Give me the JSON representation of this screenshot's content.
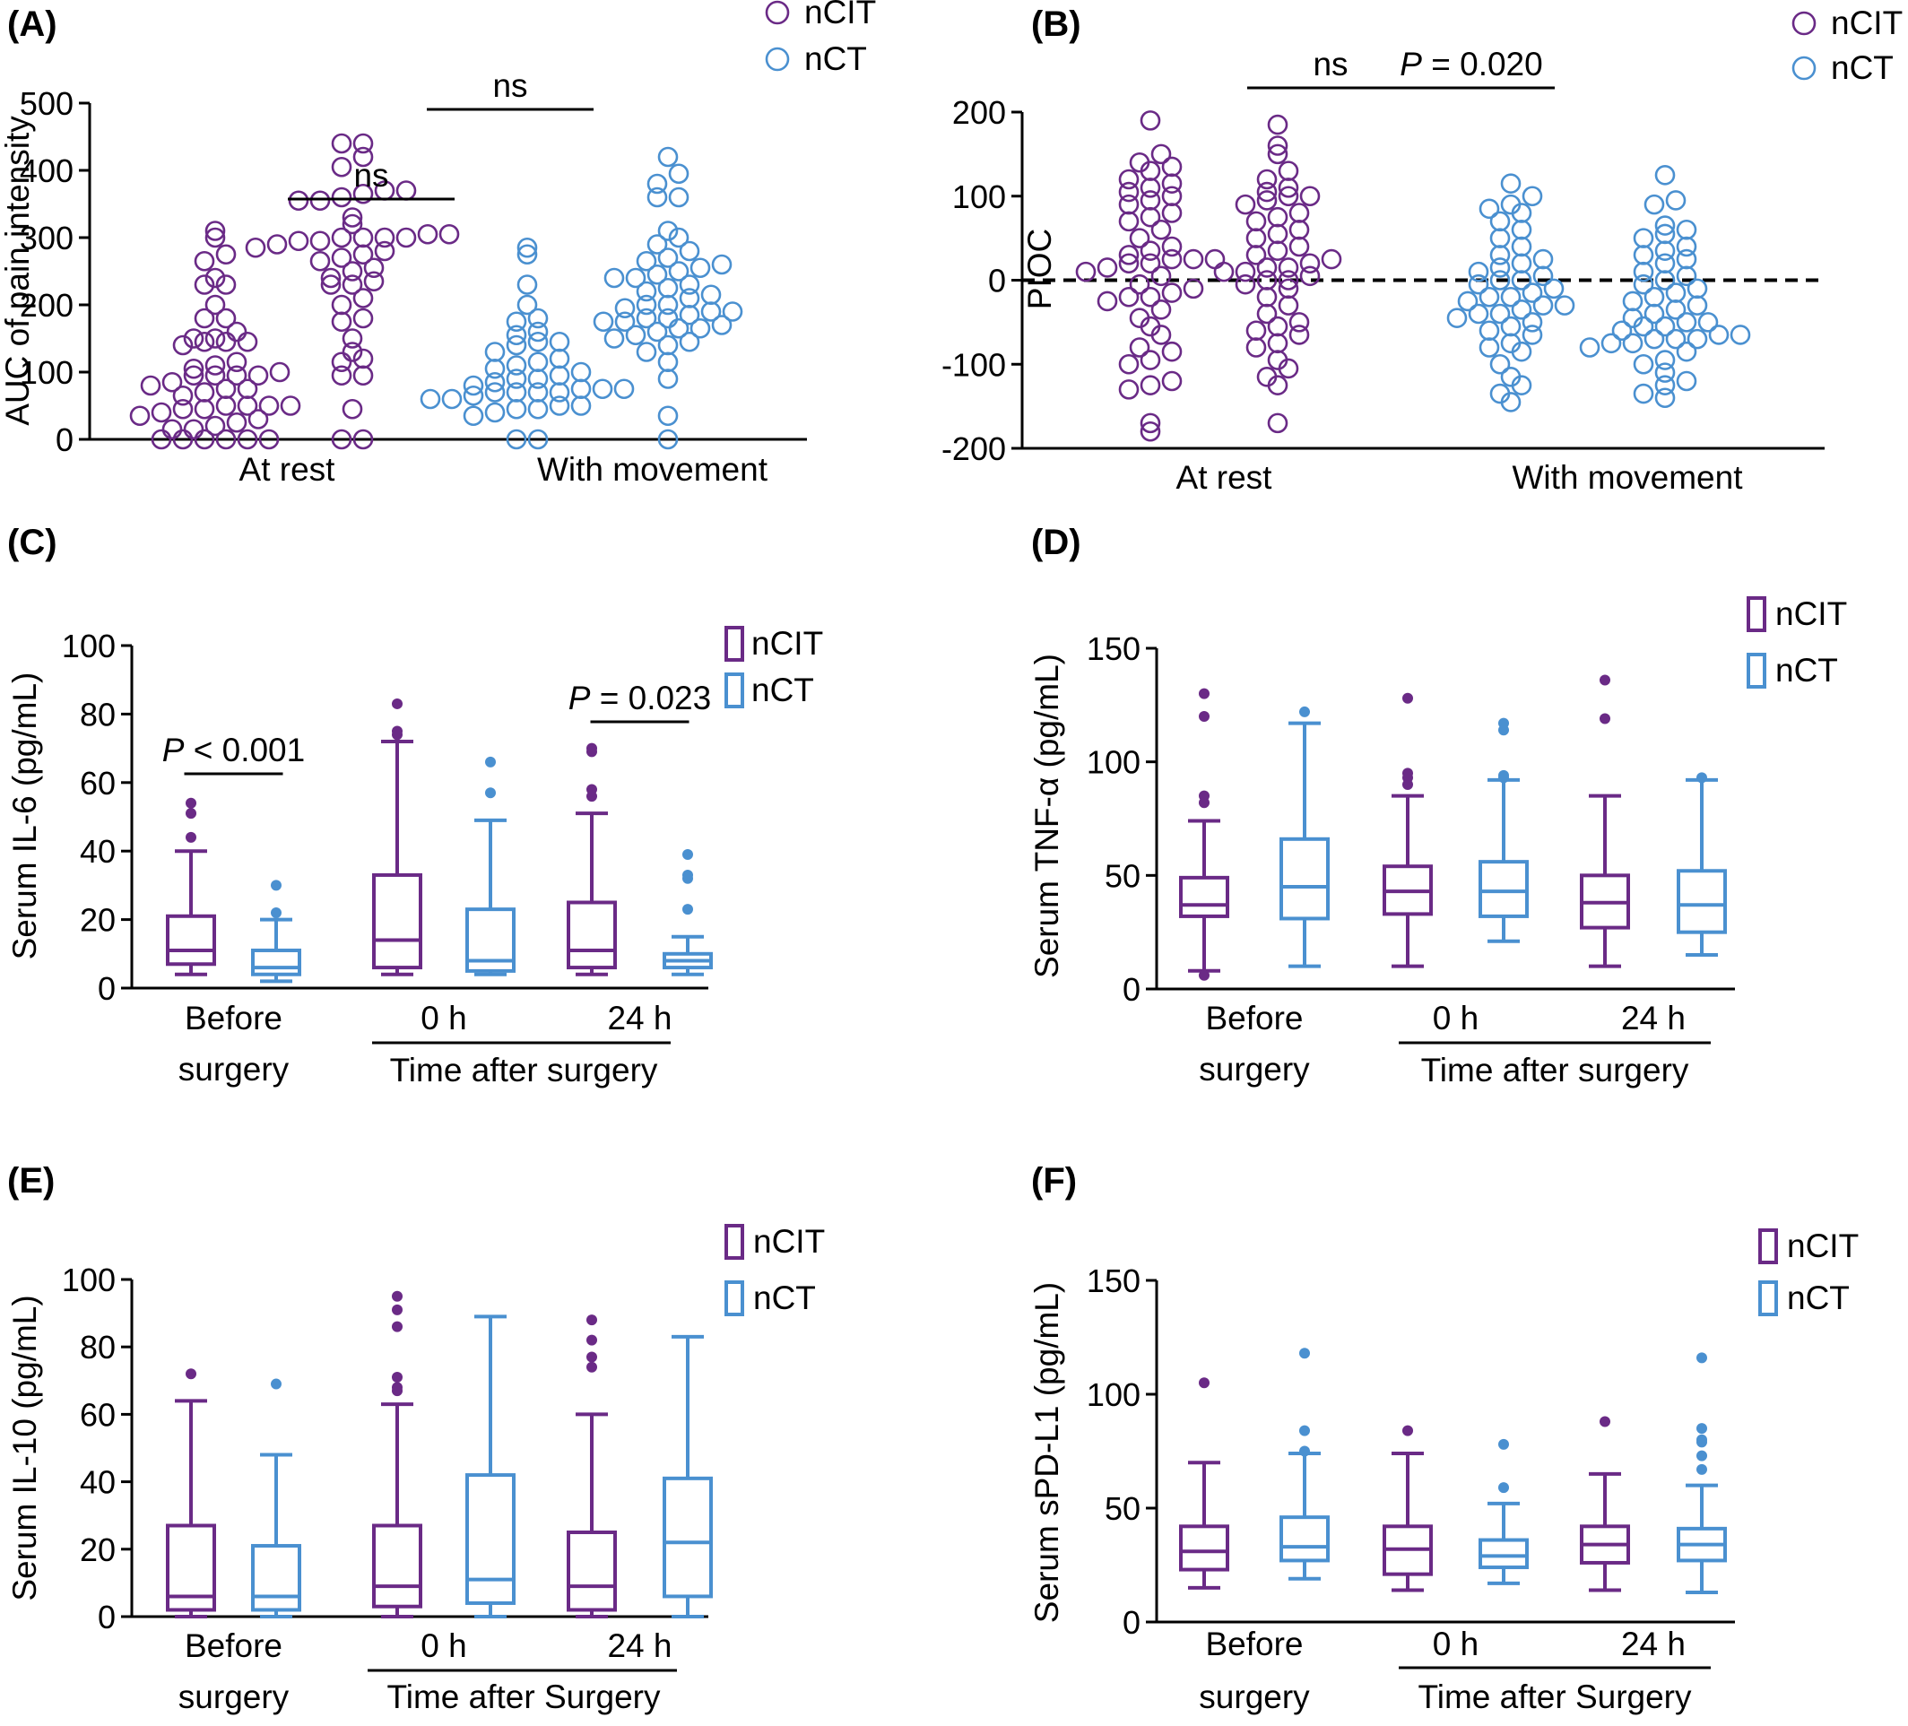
{
  "colors": {
    "ncit": "#6a2a86",
    "nct": "#4a90d0",
    "axis": "#000000"
  },
  "chart_data": [
    {
      "panel": "(A)",
      "type": "scatter",
      "ylabel": "AUC of pain intensity",
      "ylim": [
        0,
        500
      ],
      "yticks": [
        0,
        100,
        200,
        300,
        400,
        500
      ],
      "categories": [
        "At rest",
        "With movement"
      ],
      "legend": [
        "nCIT",
        "nCT"
      ],
      "legend_position": "top-right",
      "comparisons": [
        {
          "group": "At rest",
          "label": "ns",
          "italic_p": false
        },
        {
          "group": "With movement",
          "label": "ns",
          "italic_p": false
        }
      ],
      "series": [
        {
          "name": "nCIT",
          "group": "At rest",
          "values": [
            0,
            0,
            0,
            0,
            0,
            0,
            15,
            15,
            20,
            25,
            30,
            35,
            40,
            45,
            45,
            50,
            50,
            50,
            50,
            65,
            70,
            75,
            75,
            80,
            85,
            95,
            95,
            95,
            95,
            100,
            105,
            110,
            115,
            140,
            145,
            145,
            145,
            150,
            150,
            160,
            180,
            180,
            200,
            230,
            230,
            240,
            265,
            275,
            300,
            310
          ]
        },
        {
          "name": "nCT",
          "group": "At rest",
          "values": [
            0,
            0,
            35,
            40,
            45,
            45,
            50,
            50,
            60,
            60,
            65,
            70,
            70,
            70,
            70,
            75,
            75,
            75,
            80,
            85,
            90,
            90,
            95,
            100,
            105,
            110,
            115,
            120,
            130,
            140,
            145,
            145,
            155,
            160,
            175,
            180,
            200,
            230,
            275,
            285
          ]
        },
        {
          "name": "nCIT",
          "group": "With movement",
          "values": [
            0,
            0,
            45,
            95,
            95,
            115,
            120,
            130,
            150,
            175,
            180,
            200,
            210,
            230,
            230,
            235,
            240,
            250,
            255,
            265,
            270,
            275,
            280,
            285,
            290,
            295,
            295,
            300,
            300,
            300,
            300,
            305,
            305,
            320,
            330,
            355,
            355,
            360,
            365,
            370,
            370,
            405,
            420,
            440,
            440
          ]
        },
        {
          "name": "nCT",
          "group": "With movement",
          "values": [
            0,
            35,
            90,
            115,
            130,
            140,
            145,
            150,
            155,
            160,
            165,
            165,
            170,
            175,
            175,
            180,
            180,
            185,
            190,
            190,
            195,
            200,
            200,
            210,
            215,
            220,
            225,
            230,
            240,
            240,
            245,
            250,
            255,
            260,
            265,
            270,
            280,
            290,
            300,
            310,
            360,
            360,
            380,
            395,
            420
          ]
        }
      ]
    },
    {
      "panel": "(B)",
      "type": "scatter",
      "ylabel": "PIOC",
      "ylim": [
        -200,
        200
      ],
      "yticks": [
        -200,
        -100,
        0,
        100,
        200
      ],
      "categories": [
        "At rest",
        "With movement"
      ],
      "legend": [
        "nCIT",
        "nCT"
      ],
      "legend_position": "top-right",
      "comparisons": [
        {
          "group": "At rest",
          "label": "ns",
          "italic_p": false
        },
        {
          "group": "With movement",
          "p_prefix": "P",
          "label": " = 0.020",
          "italic_p": true
        }
      ],
      "series": [
        {
          "name": "nCIT",
          "group": "At rest",
          "values": [
            -180,
            -170,
            -130,
            -125,
            -120,
            -100,
            -95,
            -85,
            -80,
            -65,
            -55,
            -45,
            -35,
            -25,
            -20,
            -20,
            -15,
            -10,
            -5,
            5,
            10,
            15,
            20,
            20,
            25,
            25,
            25,
            30,
            35,
            40,
            50,
            60,
            70,
            75,
            80,
            90,
            95,
            100,
            105,
            110,
            115,
            120,
            130,
            135,
            140,
            150,
            190
          ]
        },
        {
          "name": "nCT",
          "group": "At rest",
          "values": [
            -145,
            -135,
            -125,
            -115,
            -100,
            -85,
            -80,
            -75,
            -65,
            -60,
            -55,
            -50,
            -45,
            -40,
            -40,
            -35,
            -30,
            -30,
            -25,
            -20,
            -20,
            -15,
            -10,
            -5,
            0,
            0,
            5,
            10,
            15,
            20,
            25,
            30,
            40,
            50,
            60,
            70,
            80,
            85,
            90,
            100,
            115
          ]
        },
        {
          "name": "nCIT",
          "group": "With movement",
          "values": [
            -170,
            -125,
            -115,
            -105,
            -95,
            -80,
            -75,
            -65,
            -60,
            -55,
            -50,
            -40,
            -30,
            -20,
            -10,
            -5,
            0,
            0,
            5,
            10,
            10,
            15,
            15,
            20,
            25,
            30,
            35,
            40,
            50,
            55,
            60,
            70,
            75,
            80,
            90,
            95,
            100,
            100,
            105,
            110,
            120,
            130,
            150,
            160,
            185
          ]
        },
        {
          "name": "nCT",
          "group": "With movement",
          "values": [
            -140,
            -135,
            -125,
            -120,
            -110,
            -100,
            -95,
            -85,
            -80,
            -75,
            -75,
            -70,
            -70,
            -70,
            -65,
            -65,
            -60,
            -55,
            -55,
            -50,
            -50,
            -45,
            -40,
            -35,
            -30,
            -25,
            -20,
            -15,
            -10,
            -5,
            0,
            5,
            10,
            20,
            25,
            30,
            35,
            40,
            50,
            55,
            60,
            65,
            90,
            95,
            125
          ]
        }
      ]
    },
    {
      "panel": "(C)",
      "type": "box",
      "ylabel": "Serum IL-6 (pg/mL)",
      "ylim": [
        0,
        100
      ],
      "yticks": [
        0,
        20,
        40,
        60,
        80,
        100
      ],
      "categories": [
        "Before\nsurgery",
        "0 h",
        "24 h"
      ],
      "group_caption": "Time after surgery",
      "legend": [
        "nCIT",
        "nCT"
      ],
      "legend_position": "top-right",
      "comparisons": [
        {
          "group": "Before\nsurgery",
          "p_prefix": "P",
          "label": " < 0.001",
          "italic_p": true
        },
        {
          "group": "24 h",
          "p_prefix": "P",
          "label": " = 0.023",
          "italic_p": true
        }
      ],
      "series": [
        {
          "name": "nCIT",
          "boxes": [
            {
              "min": 4,
              "q1": 7,
              "median": 11,
              "q3": 21,
              "max": 40,
              "outliers": [
                44,
                51,
                54
              ]
            },
            {
              "min": 4,
              "q1": 6,
              "median": 14,
              "q3": 33,
              "max": 72,
              "outliers": [
                74,
                75,
                83
              ]
            },
            {
              "min": 4,
              "q1": 6,
              "median": 11,
              "q3": 25,
              "max": 51,
              "outliers": [
                56,
                58,
                69,
                70
              ]
            }
          ]
        },
        {
          "name": "nCT",
          "boxes": [
            {
              "min": 2,
              "q1": 4,
              "median": 6,
              "q3": 11,
              "max": 20,
              "outliers": [
                22,
                30
              ]
            },
            {
              "min": 4,
              "q1": 5,
              "median": 8,
              "q3": 23,
              "max": 49,
              "outliers": [
                57,
                66
              ]
            },
            {
              "min": 4,
              "q1": 6,
              "median": 8,
              "q3": 10,
              "max": 15,
              "outliers": [
                23,
                32,
                33,
                39
              ]
            }
          ]
        }
      ]
    },
    {
      "panel": "(D)",
      "type": "box",
      "ylabel": "Serum TNF-α (pg/mL)",
      "ylim": [
        0,
        150
      ],
      "yticks": [
        0,
        50,
        100,
        150
      ],
      "categories": [
        "Before\nsurgery",
        "0 h",
        "24 h"
      ],
      "group_caption": "Time after surgery",
      "legend": [
        "nCIT",
        "nCT"
      ],
      "legend_position": "top-right",
      "comparisons": [],
      "series": [
        {
          "name": "nCIT",
          "boxes": [
            {
              "min": 8,
              "q1": 32,
              "median": 37,
              "q3": 49,
              "max": 74,
              "outliers": [
                6,
                82,
                85,
                120,
                130
              ]
            },
            {
              "min": 10,
              "q1": 33,
              "median": 43,
              "q3": 54,
              "max": 85,
              "outliers": [
                90,
                93,
                95,
                128
              ]
            },
            {
              "min": 10,
              "q1": 27,
              "median": 38,
              "q3": 50,
              "max": 85,
              "outliers": [
                119,
                136
              ]
            }
          ]
        },
        {
          "name": "nCT",
          "boxes": [
            {
              "min": 10,
              "q1": 31,
              "median": 45,
              "q3": 66,
              "max": 117,
              "outliers": [
                122
              ]
            },
            {
              "min": 21,
              "q1": 32,
              "median": 43,
              "q3": 56,
              "max": 92,
              "outliers": [
                93,
                94,
                114,
                117
              ]
            },
            {
              "min": 15,
              "q1": 25,
              "median": 37,
              "q3": 52,
              "max": 92,
              "outliers": [
                93
              ]
            }
          ]
        }
      ]
    },
    {
      "panel": "(E)",
      "type": "box",
      "ylabel": "Serum IL-10 (pg/mL)",
      "ylim": [
        0,
        100
      ],
      "yticks": [
        0,
        20,
        40,
        60,
        80,
        100
      ],
      "categories": [
        "Before\nsurgery",
        "0 h",
        "24 h"
      ],
      "group_caption": "Time after Surgery",
      "legend": [
        "nCIT",
        "nCT"
      ],
      "legend_position": "top-right",
      "comparisons": [],
      "series": [
        {
          "name": "nCIT",
          "boxes": [
            {
              "min": 0,
              "q1": 2,
              "median": 6,
              "q3": 27,
              "max": 64,
              "outliers": [
                72
              ]
            },
            {
              "min": 0,
              "q1": 3,
              "median": 9,
              "q3": 27,
              "max": 63,
              "outliers": [
                67,
                68,
                71,
                86,
                91,
                95
              ]
            },
            {
              "min": 0,
              "q1": 2,
              "median": 9,
              "q3": 25,
              "max": 60,
              "outliers": [
                74,
                77,
                82,
                88
              ]
            }
          ]
        },
        {
          "name": "nCT",
          "boxes": [
            {
              "min": 0,
              "q1": 2,
              "median": 6,
              "q3": 21,
              "max": 48,
              "outliers": [
                69
              ]
            },
            {
              "min": 0,
              "q1": 4,
              "median": 11,
              "q3": 42,
              "max": 89,
              "outliers": []
            },
            {
              "min": 0,
              "q1": 6,
              "median": 22,
              "q3": 41,
              "max": 83,
              "outliers": []
            }
          ]
        }
      ]
    },
    {
      "panel": "(F)",
      "type": "box",
      "ylabel": "Serum sPD-L1 (pg/mL)",
      "ylim": [
        0,
        150
      ],
      "yticks": [
        0,
        50,
        100,
        150
      ],
      "categories": [
        "Before\nsurgery",
        "0 h",
        "24 h"
      ],
      "group_caption": "Time after Surgery",
      "legend": [
        "nCIT",
        "nCT"
      ],
      "legend_position": "top-right",
      "comparisons": [],
      "series": [
        {
          "name": "nCIT",
          "boxes": [
            {
              "min": 15,
              "q1": 23,
              "median": 31,
              "q3": 42,
              "max": 70,
              "outliers": [
                105
              ]
            },
            {
              "min": 14,
              "q1": 21,
              "median": 32,
              "q3": 42,
              "max": 74,
              "outliers": [
                84
              ]
            },
            {
              "min": 14,
              "q1": 26,
              "median": 34,
              "q3": 42,
              "max": 65,
              "outliers": [
                88
              ]
            }
          ]
        },
        {
          "name": "nCT",
          "boxes": [
            {
              "min": 19,
              "q1": 27,
              "median": 33,
              "q3": 46,
              "max": 74,
              "outliers": [
                75,
                84,
                118
              ]
            },
            {
              "min": 17,
              "q1": 24,
              "median": 29,
              "q3": 36,
              "max": 52,
              "outliers": [
                59,
                78
              ]
            },
            {
              "min": 13,
              "q1": 27,
              "median": 34,
              "q3": 41,
              "max": 60,
              "outliers": [
                67,
                73,
                79,
                80,
                85,
                116
              ]
            }
          ]
        }
      ]
    }
  ]
}
